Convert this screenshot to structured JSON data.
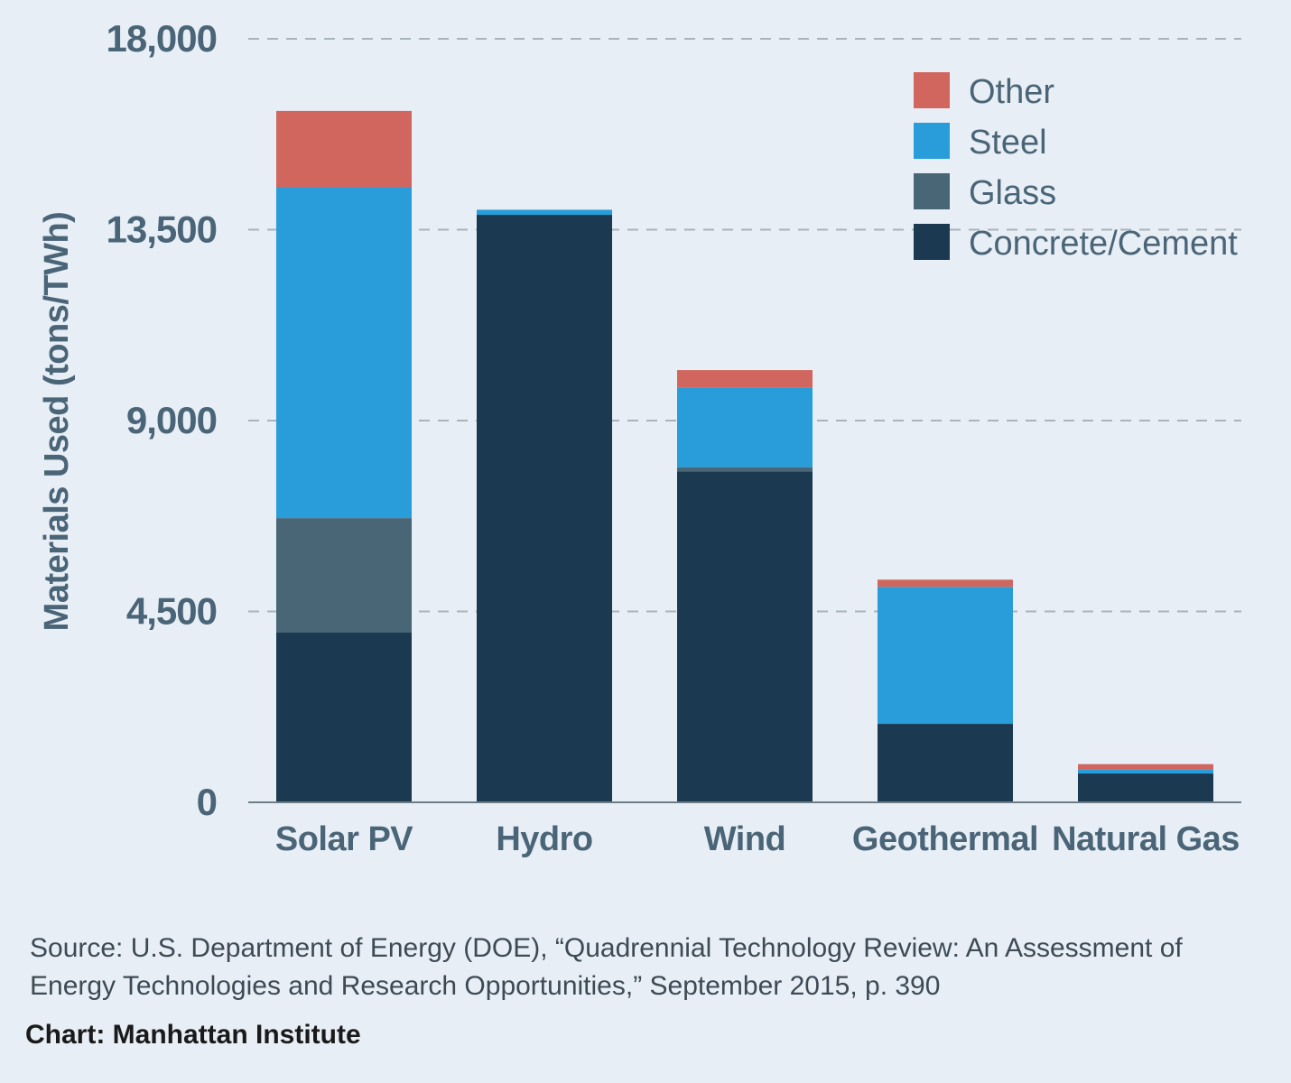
{
  "chart_data": {
    "type": "bar",
    "stacked": true,
    "title": "",
    "xlabel": "",
    "ylabel": "Materials Used (tons/TWh)",
    "ylim": [
      0,
      18000
    ],
    "yticks": [
      0,
      4500,
      9000,
      13500,
      18000
    ],
    "ytick_labels": [
      "0",
      "4,500",
      "9,000",
      "13,500",
      "18,000"
    ],
    "grid": true,
    "legend_position": "top-right",
    "categories": [
      "Solar PV",
      "Hydro",
      "Wind",
      "Geothermal",
      "Natural Gas"
    ],
    "series": [
      {
        "name": "Concrete/Cement",
        "color": "#1b3a52",
        "values": [
          4000,
          13850,
          7800,
          1850,
          680
        ]
      },
      {
        "name": "Glass",
        "color": "#486675",
        "values": [
          2700,
          0,
          100,
          0,
          0
        ]
      },
      {
        "name": "Steel",
        "color": "#289dd9",
        "values": [
          7800,
          120,
          1870,
          3230,
          100
        ]
      },
      {
        "name": "Other",
        "color": "#d1665f",
        "values": [
          1800,
          0,
          420,
          170,
          120
        ]
      }
    ]
  },
  "source_text": "Source: U.S. Department of Energy (DOE), “Quadrennial Technology Review: An Assessment of Energy Technologies and Research Opportunities,” September 2015, p. 390",
  "credit_text": "Chart: Manhattan Institute"
}
